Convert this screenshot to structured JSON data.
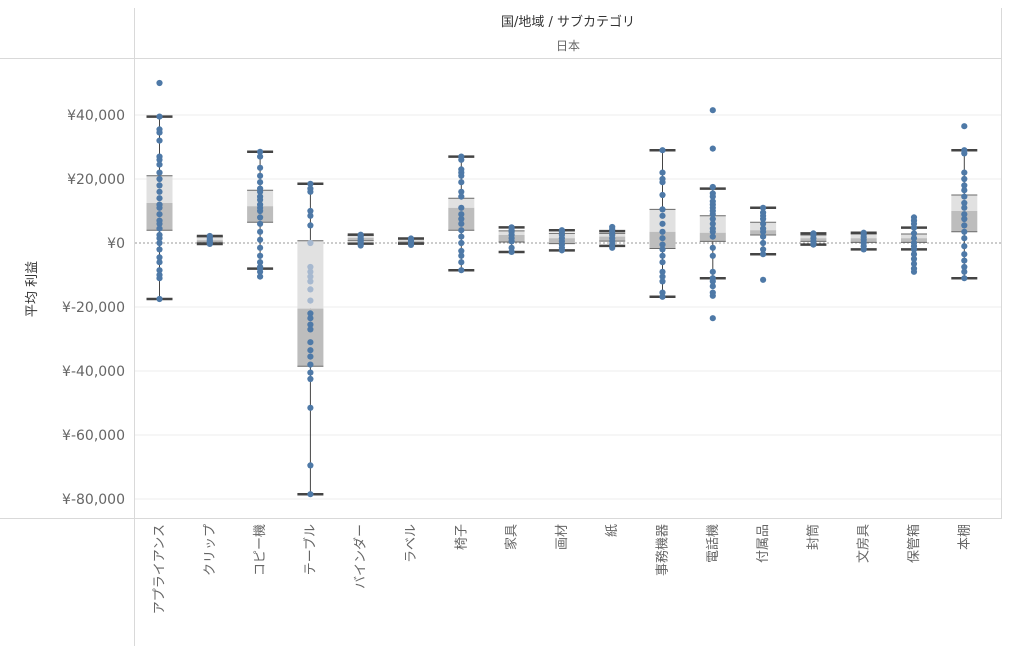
{
  "header": {
    "title": "国/地域 / サブカテゴリ",
    "subtitle": "日本"
  },
  "colors": {
    "point": "#4e79a7",
    "point_faded": "#a6b8cf",
    "whisker": "#444444",
    "box_upper": "#e1e1e1",
    "box_lower": "#bdbdbd",
    "grid": "#ececec",
    "zero_line": "#999999"
  },
  "chart_data": {
    "type": "box",
    "ylabel": "平均 利益",
    "xlabel": "",
    "ylim": [
      -84000,
      58000
    ],
    "y_ticks": [
      40000,
      20000,
      0,
      -20000,
      -40000,
      -60000,
      -80000
    ],
    "y_tick_labels": [
      "¥40,000",
      "¥20,000",
      "¥0",
      "¥-20,000",
      "¥-40,000",
      "¥-60,000",
      "¥-80,000"
    ],
    "grid": true,
    "categories": [
      "アプライアンス",
      "クリップ",
      "コピー機",
      "テーブル",
      "バインダー",
      "ラベル",
      "椅子",
      "家具",
      "画材",
      "紙",
      "事務機器",
      "電話機",
      "付属品",
      "封筒",
      "文房具",
      "保管箱",
      "本棚"
    ],
    "boxes": [
      {
        "min": -17500,
        "q1": 4000,
        "median": 12500,
        "q3": 21000,
        "max": 39500
      },
      {
        "min": -300,
        "q1": 200,
        "median": 900,
        "q3": 1900,
        "max": 2200
      },
      {
        "min": -8000,
        "q1": 6500,
        "median": 11500,
        "q3": 16500,
        "max": 28500
      },
      {
        "min": -78500,
        "q1": -38500,
        "median": -20500,
        "q3": 700,
        "max": 18500
      },
      {
        "min": -200,
        "q1": 700,
        "median": 1600,
        "q3": 2400,
        "max": 2600
      },
      {
        "min": -200,
        "q1": 100,
        "median": 700,
        "q3": 1200,
        "max": 1400
      },
      {
        "min": -8500,
        "q1": 4000,
        "median": 11000,
        "q3": 14000,
        "max": 27000
      },
      {
        "min": -2800,
        "q1": 300,
        "median": 2500,
        "q3": 3800,
        "max": 4900
      },
      {
        "min": -2300,
        "q1": -200,
        "median": 1500,
        "q3": 3000,
        "max": 4000
      },
      {
        "min": -900,
        "q1": 600,
        "median": 2000,
        "q3": 3000,
        "max": 3700
      },
      {
        "min": -16800,
        "q1": -1700,
        "median": 3500,
        "q3": 10500,
        "max": 29000
      },
      {
        "min": -11000,
        "q1": 500,
        "median": 3200,
        "q3": 8500,
        "max": 17000
      },
      {
        "min": -3500,
        "q1": 2500,
        "median": 4000,
        "q3": 6500,
        "max": 11000
      },
      {
        "min": -500,
        "q1": 500,
        "median": 1500,
        "q3": 2500,
        "max": 3000
      },
      {
        "min": -2000,
        "q1": 200,
        "median": 1500,
        "q3": 2800,
        "max": 3200
      },
      {
        "min": -2000,
        "q1": 200,
        "median": 1500,
        "q3": 2800,
        "max": 4800
      },
      {
        "min": -11000,
        "q1": 3500,
        "median": 10000,
        "q3": 15000,
        "max": 29000
      }
    ],
    "points": [
      [
        50000,
        39500,
        35500,
        34500,
        32000,
        27000,
        26000,
        24500,
        22000,
        20000,
        18000,
        16000,
        14000,
        12000,
        11000,
        9000,
        7000,
        6000,
        4500,
        2500,
        1500,
        0,
        -2000,
        -4500,
        -6000,
        -8500,
        -10000,
        -11000,
        -17500
      ],
      [
        2200,
        1600,
        1000,
        500,
        0,
        -300
      ],
      [
        28500,
        27000,
        23500,
        21000,
        19000,
        17000,
        16000,
        14500,
        13500,
        12000,
        11000,
        10000,
        8000,
        6000,
        3500,
        1000,
        -1500,
        -4000,
        -6000,
        -7500,
        -8000,
        -9000,
        -10500
      ],
      [
        18500,
        17000,
        16000,
        10000,
        8500,
        5500,
        0,
        -7500,
        -9000,
        -10500,
        -12000,
        -14500,
        -18000,
        -22000,
        -23500,
        -25500,
        -27000,
        -31000,
        -33500,
        -35500,
        -38000,
        -40500,
        -42500,
        -51500,
        -69500,
        -78500
      ],
      [
        2600,
        2100,
        1400,
        900,
        400,
        -200,
        -800
      ],
      [
        1400,
        1000,
        600,
        200,
        -200,
        -600
      ],
      [
        27000,
        26000,
        23000,
        22000,
        21000,
        19000,
        16000,
        14500,
        11000,
        9000,
        7500,
        6000,
        4000,
        2000,
        0,
        -2500,
        -4000,
        -6000,
        -8500
      ],
      [
        4900,
        4000,
        3500,
        2500,
        1500,
        500,
        -1500,
        -2800
      ],
      [
        4000,
        3500,
        2500,
        1500,
        500,
        -500,
        -1500,
        -2300
      ],
      [
        5000,
        4300,
        3500,
        2500,
        1500,
        500,
        -500,
        -1500
      ],
      [
        29000,
        22000,
        20000,
        19000,
        15000,
        10500,
        8500,
        6000,
        3500,
        1500,
        -500,
        -2000,
        -4000,
        -6000,
        -9000,
        -10500,
        -12000,
        -15500,
        -16800
      ],
      [
        41500,
        29500,
        17500,
        15500,
        14500,
        13000,
        12000,
        11000,
        10000,
        9000,
        7500,
        6000,
        4500,
        3500,
        2000,
        -1500,
        -4000,
        -9000,
        -11000,
        -12000,
        -13500,
        -15500,
        -16500,
        -23500
      ],
      [
        11000,
        9500,
        8500,
        7500,
        6000,
        4500,
        3500,
        2000,
        0,
        -2000,
        -3500,
        -11500
      ],
      [
        3000,
        2500,
        1500,
        500,
        -500
      ],
      [
        3200,
        2700,
        1800,
        1000,
        0,
        -1000,
        -2000
      ],
      [
        8000,
        7000,
        6000,
        4800,
        3000,
        1500,
        0,
        -1000,
        -2000,
        -3500,
        -5000,
        -6500,
        -8000,
        -9000
      ],
      [
        36500,
        29000,
        28000,
        22000,
        20000,
        18000,
        16500,
        14500,
        12500,
        11000,
        9000,
        7500,
        5500,
        3500,
        1500,
        -1000,
        -3500,
        -5500,
        -7500,
        -9000,
        -11000
      ]
    ]
  }
}
